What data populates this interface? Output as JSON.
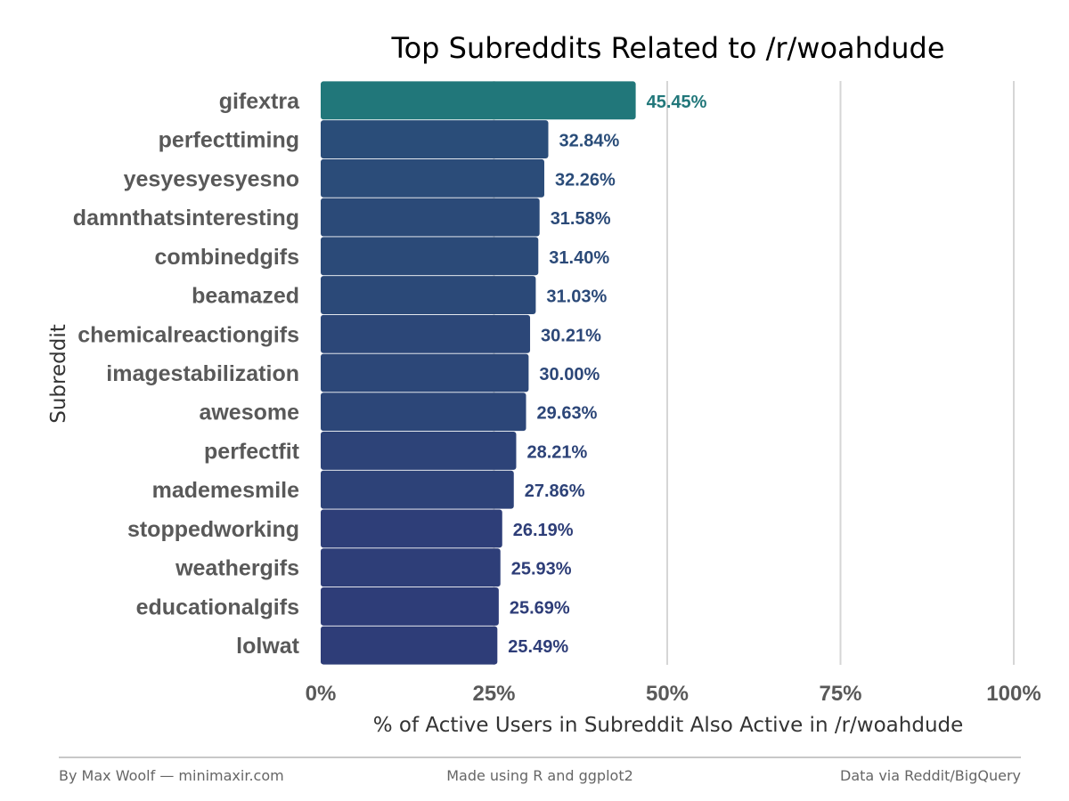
{
  "chart_data": {
    "type": "bar",
    "orientation": "horizontal",
    "title": "Top Subreddits Related to /r/woahdude",
    "xlabel": "% of Active Users in Subreddit Also Active in /r/woahdude",
    "ylabel": "Subreddit",
    "xlim": [
      0,
      100
    ],
    "x_ticks": [
      "0%",
      "25%",
      "50%",
      "75%",
      "100%"
    ],
    "grid": "vertical major",
    "categories": [
      "gifextra",
      "perfecttiming",
      "yesyesyesyesno",
      "damnthatsinteresting",
      "combinedgifs",
      "beamazed",
      "chemicalreactiongifs",
      "imagestabilization",
      "awesome",
      "perfectfit",
      "mademesmile",
      "stoppedworking",
      "weathergifs",
      "educationalgifs",
      "lolwat"
    ],
    "values": [
      45.45,
      32.84,
      32.26,
      31.58,
      31.4,
      31.03,
      30.21,
      30.0,
      29.63,
      28.21,
      27.86,
      26.19,
      25.93,
      25.69,
      25.49
    ],
    "value_labels": [
      "45.45%",
      "32.84%",
      "32.26%",
      "31.58%",
      "31.40%",
      "31.03%",
      "30.21%",
      "30.00%",
      "29.63%",
      "28.21%",
      "27.86%",
      "26.19%",
      "25.93%",
      "25.69%",
      "25.49%"
    ],
    "colors": {
      "bar_high": "#21777a",
      "bar_low": "#2e3d78",
      "text": "#595959",
      "grid": "#d6d6d6"
    }
  },
  "footer": {
    "left": "By Max Woolf — minimaxir.com",
    "center": "Made using R and ggplot2",
    "right": "Data via Reddit/BigQuery"
  }
}
